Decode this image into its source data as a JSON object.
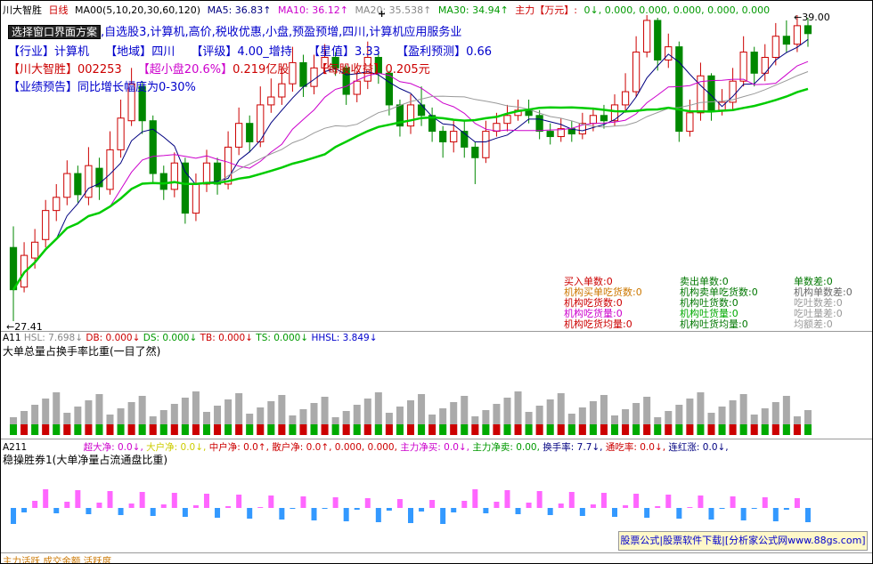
{
  "header": {
    "stock_name": "川大智胜",
    "period": "日线",
    "ma_label": "MA00(5,10,20,30,60,120)",
    "ma5": "MA5: 36.83↑",
    "ma10": "MA10: 36.12↑",
    "ma20": "MA20: 35.538↑",
    "ma30": "MA30: 34.94↑",
    "main_force": "主力【万元】:",
    "main_values": "0↓, 0.000, 0.000, 0.000, 0.000, 0.000"
  },
  "info": {
    "scheme_button": "选择窗口界面方案",
    "line1_tail": ",自选股3,计算机,高价,税收优惠,小盘,预盈预增,四川,计算机应用服务业",
    "industry_label": "【行业】",
    "industry": "计算机",
    "region_label": "【地域】",
    "region": "四川",
    "rating_label": "【评级】",
    "rating": "4.00_增持",
    "star_label": "【星值】",
    "star": "3.33",
    "profit_label": "【盈利预测】",
    "profit": "0.66",
    "name_label": "【川大智胜】",
    "code": "002253",
    "cap_label": "【超小盘20.6%】",
    "cap": "0.219亿股",
    "eps_label": "【每股收益】",
    "eps": "0.205元",
    "forecast_label": "【业绩预告】",
    "forecast": "同比增长幅度为0-30%"
  },
  "price_labels": {
    "high": "39.00",
    "low": "27.41",
    "marker": "+"
  },
  "stats": [
    {
      "text": "买入单数:0",
      "color": "#cc0000"
    },
    {
      "text": "卖出单数:0",
      "color": "#007700"
    },
    {
      "text": "单数差:0",
      "color": "#007700"
    },
    {
      "text": "机构买单吃货数:0",
      "color": "#cc7700"
    },
    {
      "text": "机构卖单吃货数:0",
      "color": "#007700"
    },
    {
      "text": "机构单数差:0",
      "color": "#666666"
    },
    {
      "text": "机构吃货数:0",
      "color": "#cc0000"
    },
    {
      "text": "机构吐货数:0",
      "color": "#007700"
    },
    {
      "text": "吃吐数差:0",
      "color": "#999999"
    },
    {
      "text": "机构吃货量:0",
      "color": "#cc00cc"
    },
    {
      "text": "机构吐货量:0",
      "color": "#00aa00"
    },
    {
      "text": "吃吐量差:0",
      "color": "#999999"
    },
    {
      "text": "机构吃货均量:0",
      "color": "#cc0000"
    },
    {
      "text": "机构吐货均量:0",
      "color": "#007700"
    },
    {
      "text": "均额差:0",
      "color": "#999999"
    }
  ],
  "panel1": {
    "label": "A11",
    "hsl": "HSL: 7.698↓",
    "db": "DB: 0.000↓",
    "ds": "DS: 0.000↓",
    "tb": "TB: 0.000↓",
    "ts": "TS: 0.000↓",
    "hhsl": "HHSL: 3.849↓",
    "title": "大单总量占换手率比重(一目了然)"
  },
  "panel2": {
    "label": "A211",
    "super": "超大净: 0.0↓,",
    "big": "大户净: 0.0↓,",
    "mid": "中户净: 0.0↑,",
    "small": "散户净: 0.0↑, 0.000, 0.000,",
    "main_buy": "主力净买: 0.0↓,",
    "main_sell": "主力净卖: 0.00,",
    "turnover": "换手率: 7.7↓,",
    "pass": "通吃率: 0.0↓,",
    "streak": "连红涨: 0.0↓,",
    "title": "稳操胜券1(大单净量占流通盘比重)"
  },
  "footer": {
    "watermark": "股票公式|股票软件下载|[分析家公式网www.88gs.com]",
    "bottom": "主力活跃  成交金额  活跃度"
  },
  "chart_data": {
    "type": "candlestick",
    "ylim": [
      27.41,
      39.0
    ],
    "candles": [
      [
        30.2,
        28.6,
        31.0,
        27.41
      ],
      [
        28.7,
        29.9,
        30.4,
        28.5
      ],
      [
        29.8,
        30.4,
        30.9,
        29.4
      ],
      [
        30.5,
        31.6,
        32.0,
        30.2
      ],
      [
        31.6,
        32.1,
        32.6,
        31.2
      ],
      [
        32.1,
        33.0,
        33.5,
        31.8
      ],
      [
        33.0,
        32.2,
        33.3,
        31.9
      ],
      [
        32.1,
        33.3,
        34.0,
        31.8
      ],
      [
        33.2,
        32.5,
        33.6,
        32.0
      ],
      [
        32.4,
        33.9,
        34.6,
        32.2
      ],
      [
        33.9,
        35.1,
        35.8,
        33.6
      ],
      [
        35.0,
        36.4,
        37.0,
        34.8
      ],
      [
        36.3,
        35.0,
        36.5,
        34.5
      ],
      [
        35.0,
        33.0,
        35.2,
        32.6
      ],
      [
        33.0,
        32.4,
        33.3,
        32.0
      ],
      [
        32.4,
        33.4,
        33.8,
        32.1
      ],
      [
        33.4,
        31.5,
        33.6,
        31.1
      ],
      [
        31.5,
        32.6,
        33.0,
        31.2
      ],
      [
        32.6,
        33.4,
        33.9,
        32.3
      ],
      [
        33.4,
        32.6,
        33.6,
        32.2
      ],
      [
        32.6,
        34.0,
        34.6,
        32.4
      ],
      [
        34.0,
        34.9,
        35.5,
        33.7
      ],
      [
        34.9,
        34.2,
        35.2,
        33.8
      ],
      [
        34.2,
        35.6,
        36.3,
        34.0
      ],
      [
        35.6,
        35.9,
        36.6,
        35.3
      ],
      [
        35.9,
        36.4,
        37.0,
        35.6
      ],
      [
        36.4,
        37.2,
        37.8,
        36.1
      ],
      [
        37.2,
        36.3,
        37.5,
        35.9
      ],
      [
        36.3,
        37.0,
        37.5,
        36.0
      ],
      [
        37.0,
        37.4,
        37.9,
        36.8
      ],
      [
        37.4,
        37.0,
        37.6,
        36.7
      ],
      [
        37.0,
        36.0,
        37.1,
        35.6
      ],
      [
        36.0,
        36.5,
        36.9,
        35.7
      ],
      [
        36.5,
        37.4,
        38.0,
        36.2
      ],
      [
        37.4,
        36.8,
        37.6,
        36.4
      ],
      [
        36.8,
        35.6,
        36.9,
        35.2
      ],
      [
        35.6,
        34.8,
        35.8,
        34.4
      ],
      [
        34.8,
        35.6,
        36.0,
        34.5
      ],
      [
        35.6,
        35.2,
        36.3,
        34.8
      ],
      [
        35.2,
        34.6,
        35.5,
        34.2
      ],
      [
        34.6,
        34.2,
        34.8,
        33.6
      ],
      [
        34.2,
        34.6,
        35.0,
        33.8
      ],
      [
        34.6,
        34.0,
        35.0,
        33.6
      ],
      [
        34.0,
        33.6,
        34.2,
        32.6
      ],
      [
        33.6,
        34.6,
        35.0,
        33.4
      ],
      [
        34.6,
        34.9,
        35.3,
        34.4
      ],
      [
        34.9,
        35.2,
        35.6,
        34.6
      ],
      [
        35.2,
        35.4,
        35.8,
        35.0
      ],
      [
        35.4,
        35.2,
        35.8,
        34.9
      ],
      [
        35.2,
        34.6,
        35.4,
        34.3
      ],
      [
        34.6,
        34.4,
        34.9,
        34.1
      ],
      [
        34.4,
        34.7,
        35.1,
        34.2
      ],
      [
        34.7,
        34.5,
        35.0,
        34.2
      ],
      [
        34.5,
        34.9,
        35.3,
        34.3
      ],
      [
        34.9,
        35.2,
        35.5,
        34.6
      ],
      [
        35.2,
        35.0,
        35.6,
        34.7
      ],
      [
        35.0,
        35.6,
        36.0,
        34.8
      ],
      [
        35.6,
        36.1,
        36.8,
        35.3
      ],
      [
        36.1,
        37.6,
        38.2,
        35.9
      ],
      [
        37.6,
        38.8,
        39.0,
        37.4
      ],
      [
        38.8,
        37.3,
        38.9,
        36.9
      ],
      [
        37.3,
        37.8,
        38.3,
        37.0
      ],
      [
        37.8,
        34.6,
        38.0,
        34.2
      ],
      [
        34.6,
        35.3,
        35.8,
        34.4
      ],
      [
        35.3,
        36.7,
        37.2,
        35.0
      ],
      [
        36.7,
        35.4,
        36.8,
        35.0
      ],
      [
        35.4,
        35.7,
        36.2,
        35.2
      ],
      [
        35.7,
        36.5,
        37.0,
        35.4
      ],
      [
        36.5,
        37.6,
        38.2,
        36.3
      ],
      [
        37.6,
        36.8,
        37.8,
        36.3
      ],
      [
        36.8,
        37.4,
        37.9,
        36.5
      ],
      [
        37.4,
        38.2,
        38.7,
        37.1
      ],
      [
        38.2,
        37.9,
        38.8,
        37.6
      ],
      [
        37.9,
        38.6,
        39.0,
        37.6
      ],
      [
        38.6,
        38.3,
        38.9,
        37.8
      ]
    ]
  }
}
